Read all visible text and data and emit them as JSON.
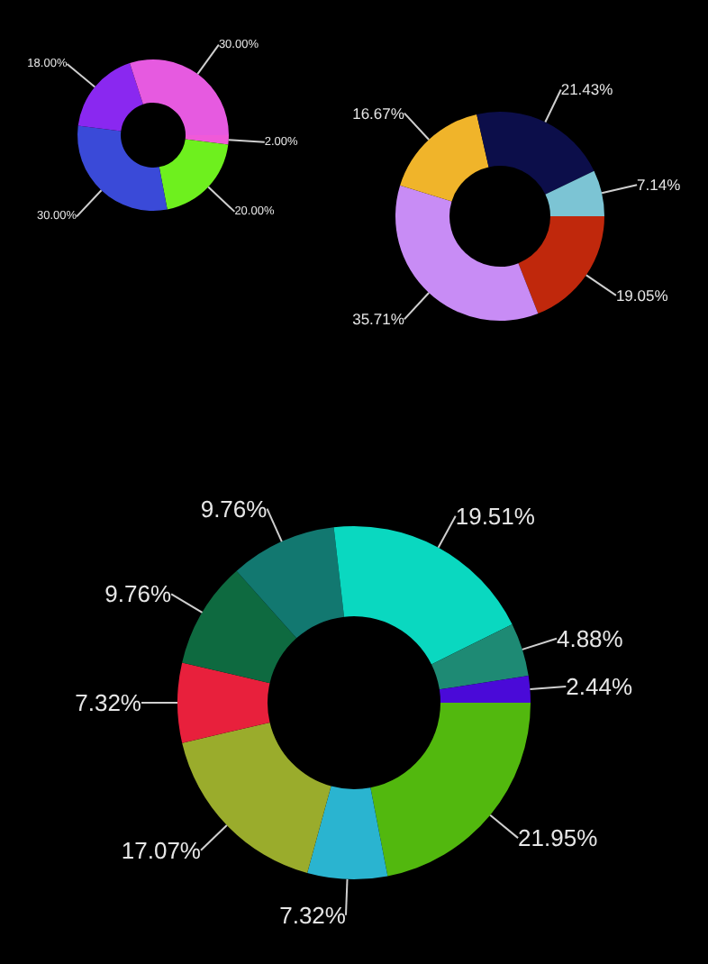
{
  "chart_data": [
    {
      "type": "donut",
      "categories": [
        null,
        null,
        null,
        null,
        null
      ],
      "values": [
        2,
        20,
        30,
        18,
        30
      ],
      "colors": [
        "#f05ad8",
        "#6ef01e",
        "#3a4ad8",
        "#8a28f0",
        "#e65ae0"
      ],
      "value_labels": [
        "2.00%",
        "20.00%",
        "30.00%",
        "18.00%",
        "30.00%"
      ]
    },
    {
      "type": "donut",
      "categories": [
        null,
        null,
        null,
        null,
        null
      ],
      "values": [
        19.05,
        35.71,
        16.67,
        21.43,
        7.14
      ],
      "colors": [
        "#c0280c",
        "#c88cf5",
        "#f0b42a",
        "#0c0e4a",
        "#7cc4d4"
      ],
      "value_labels": [
        "19.05%",
        "35.71%",
        "16.67%",
        "21.43%",
        "7.14%"
      ]
    },
    {
      "type": "donut",
      "categories": [
        null,
        null,
        null,
        null,
        null,
        null,
        null,
        null,
        null
      ],
      "values": [
        21.95,
        7.32,
        17.07,
        7.32,
        9.76,
        9.76,
        19.51,
        4.88,
        2.44
      ],
      "colors": [
        "#52b80e",
        "#2ab4d0",
        "#9aac2c",
        "#e8203c",
        "#0e6a40",
        "#127870",
        "#0ad8c0",
        "#1e8a74",
        "#4a0ad8"
      ],
      "value_labels": [
        "21.95%",
        "7.32%",
        "17.07%",
        "7.32%",
        "9.76%",
        "9.76%",
        "19.51%",
        "4.88%",
        "2.44%"
      ]
    }
  ]
}
